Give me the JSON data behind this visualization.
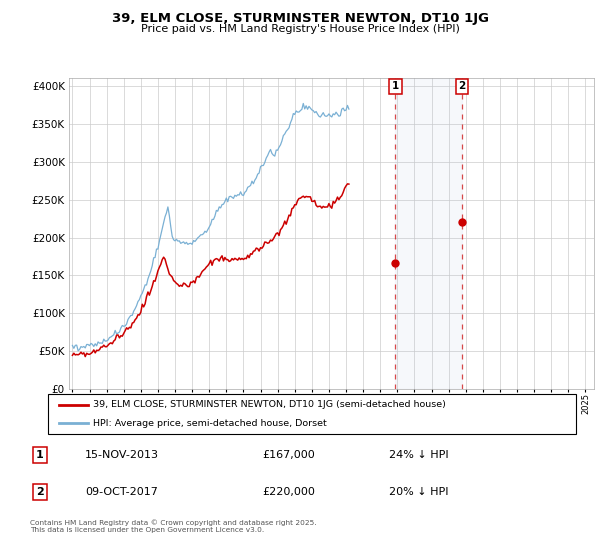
{
  "title": "39, ELM CLOSE, STURMINSTER NEWTON, DT10 1JG",
  "subtitle": "Price paid vs. HM Land Registry's House Price Index (HPI)",
  "legend_line1": "39, ELM CLOSE, STURMINSTER NEWTON, DT10 1JG (semi-detached house)",
  "legend_line2": "HPI: Average price, semi-detached house, Dorset",
  "annotation1_date": "15-NOV-2013",
  "annotation1_price": "£167,000",
  "annotation1_note": "24% ↓ HPI",
  "annotation2_date": "09-OCT-2017",
  "annotation2_price": "£220,000",
  "annotation2_note": "20% ↓ HPI",
  "footer": "Contains HM Land Registry data © Crown copyright and database right 2025.\nThis data is licensed under the Open Government Licence v3.0.",
  "hpi_color": "#7ab0d4",
  "price_color": "#cc0000",
  "sale1_date_num": 2013.88,
  "sale2_date_num": 2017.77,
  "sale1_price": 167000,
  "sale2_price": 220000,
  "ylim": [
    0,
    410000
  ],
  "xlim": [
    1994.8,
    2025.5
  ],
  "background_color": "#ffffff",
  "grid_color": "#cccccc",
  "hpi_values_monthly": [
    57000,
    56500,
    56000,
    55800,
    55600,
    55700,
    55900,
    56100,
    56400,
    56600,
    56800,
    57000,
    57300,
    57600,
    58000,
    58500,
    59000,
    59600,
    60200,
    60800,
    61500,
    62200,
    63000,
    63800,
    64700,
    65700,
    66800,
    68000,
    69300,
    70700,
    72200,
    73800,
    75500,
    77300,
    79200,
    81200,
    83300,
    85500,
    87900,
    90400,
    93100,
    96000,
    99100,
    102400,
    105900,
    109600,
    113500,
    117600,
    121900,
    126400,
    131100,
    136000,
    141100,
    146400,
    151900,
    157600,
    163500,
    169600,
    175900,
    182400,
    189100,
    196000,
    203100,
    210400,
    217900,
    225600,
    233500,
    241600,
    227000,
    215000,
    205000,
    200000,
    198000,
    196500,
    195000,
    194000,
    193500,
    193000,
    192800,
    192700,
    192600,
    192700,
    193000,
    193500,
    194100,
    195000,
    196000,
    197200,
    198600,
    200200,
    202000,
    204000,
    206200,
    208600,
    211200,
    214000,
    216900,
    219900,
    223000,
    226200,
    229400,
    232600,
    235700,
    238700,
    241500,
    244100,
    246400,
    248400,
    250100,
    251600,
    252900,
    253900,
    254700,
    255300,
    255700,
    255900,
    256000,
    256100,
    256400,
    257000,
    258000,
    259300,
    261000,
    263000,
    265300,
    267900,
    270800,
    274000,
    277400,
    281000,
    284700,
    288500,
    292100,
    295600,
    298800,
    301700,
    304200,
    306200,
    307800,
    309000,
    310000,
    311200,
    312800,
    314800,
    317300,
    320300,
    323800,
    327700,
    331900,
    336300,
    340700,
    345000,
    349000,
    352700,
    356100,
    359200,
    362100,
    364600,
    366800,
    368600,
    370000,
    371000,
    371600,
    371800,
    371800,
    371500,
    370800,
    369900,
    368800,
    367600,
    366400,
    365200,
    364100,
    363100,
    362200,
    361500,
    360900,
    360500,
    360200,
    360000,
    359900,
    360000,
    360200,
    360500,
    361000,
    361600,
    362300,
    363200,
    364200,
    365300,
    366500,
    367800,
    369200,
    370700,
    372300
  ],
  "price_values_monthly": [
    46500,
    46200,
    46000,
    45800,
    45700,
    45800,
    46000,
    46300,
    46700,
    47100,
    47500,
    47900,
    48400,
    48900,
    49400,
    50000,
    50600,
    51300,
    52000,
    52800,
    53600,
    54500,
    55400,
    56400,
    57400,
    58500,
    59600,
    60800,
    62100,
    63400,
    64800,
    66300,
    67800,
    69400,
    71100,
    72900,
    74700,
    76600,
    78600,
    80700,
    82900,
    85200,
    87600,
    90100,
    92700,
    95500,
    98400,
    101400,
    104500,
    107800,
    111200,
    114800,
    118500,
    122400,
    126400,
    130600,
    135000,
    139600,
    144400,
    149400,
    154600,
    159900,
    165400,
    171100,
    176900,
    172000,
    165000,
    158000,
    153000,
    149000,
    146000,
    143000,
    141000,
    139500,
    138200,
    137200,
    136500,
    136000,
    135800,
    135900,
    136200,
    136800,
    137700,
    138900,
    140300,
    141900,
    143700,
    145700,
    147800,
    150000,
    152300,
    154600,
    156900,
    159200,
    161400,
    163500,
    165400,
    167100,
    168600,
    169900,
    170900,
    171700,
    172200,
    172500,
    172600,
    172500,
    172300,
    172000,
    171600,
    171100,
    170600,
    170100,
    169700,
    169400,
    169200,
    169200,
    169400,
    169700,
    170200,
    170900,
    171700,
    172600,
    173600,
    174700,
    175900,
    177100,
    178400,
    179700,
    181100,
    182500,
    183900,
    185400,
    186800,
    188300,
    189700,
    191100,
    192500,
    193900,
    195300,
    196700,
    198100,
    199600,
    201200,
    203000,
    205000,
    207300,
    209800,
    212500,
    215400,
    218500,
    221800,
    225100,
    228500,
    231900,
    235200,
    238500,
    241600,
    244500,
    247200,
    249500,
    251500,
    253000,
    254100,
    254600,
    254600,
    254100,
    253100,
    251700,
    250000,
    248000,
    246000,
    244100,
    242300,
    240800,
    239700,
    238900,
    238500,
    238400,
    238700,
    239300,
    240200,
    241400,
    242800,
    244500,
    246400,
    248500,
    250800,
    253200,
    255800,
    258500,
    261300,
    264200,
    267200,
    270300,
    273400
  ]
}
